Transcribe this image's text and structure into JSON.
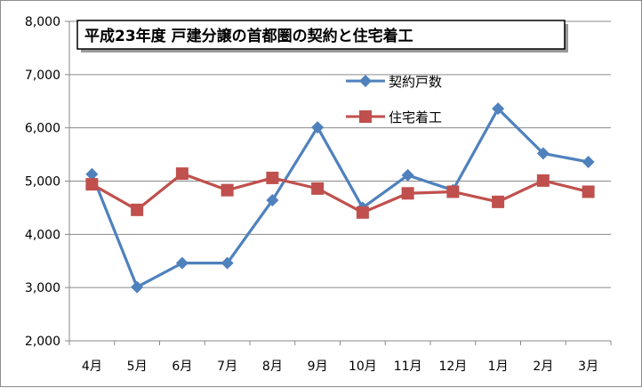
{
  "chart_data": {
    "type": "line",
    "title": "平成23年度 戸建分譲の首都圏の契約と住宅着工",
    "categories": [
      "4月",
      "5月",
      "6月",
      "7月",
      "8月",
      "9月",
      "10月",
      "11月",
      "12月",
      "1月",
      "2月",
      "3月"
    ],
    "y_ticks": [
      "2,000",
      "3,000",
      "4,000",
      "5,000",
      "6,000",
      "7,000",
      "8,000"
    ],
    "ylim": [
      2000,
      8000
    ],
    "grid": true,
    "legend_position": "top-right",
    "series": [
      {
        "name": "契約戸数",
        "color": "#4f81bd",
        "marker": "diamond",
        "values": [
          5130,
          3010,
          3460,
          3460,
          4640,
          6010,
          4500,
          5110,
          4830,
          6360,
          5520,
          5360
        ]
      },
      {
        "name": "住宅着工",
        "color": "#c0504d",
        "marker": "square",
        "values": [
          4940,
          4460,
          5140,
          4830,
          5060,
          4860,
          4410,
          4770,
          4800,
          4610,
          5010,
          4800
        ]
      }
    ]
  }
}
